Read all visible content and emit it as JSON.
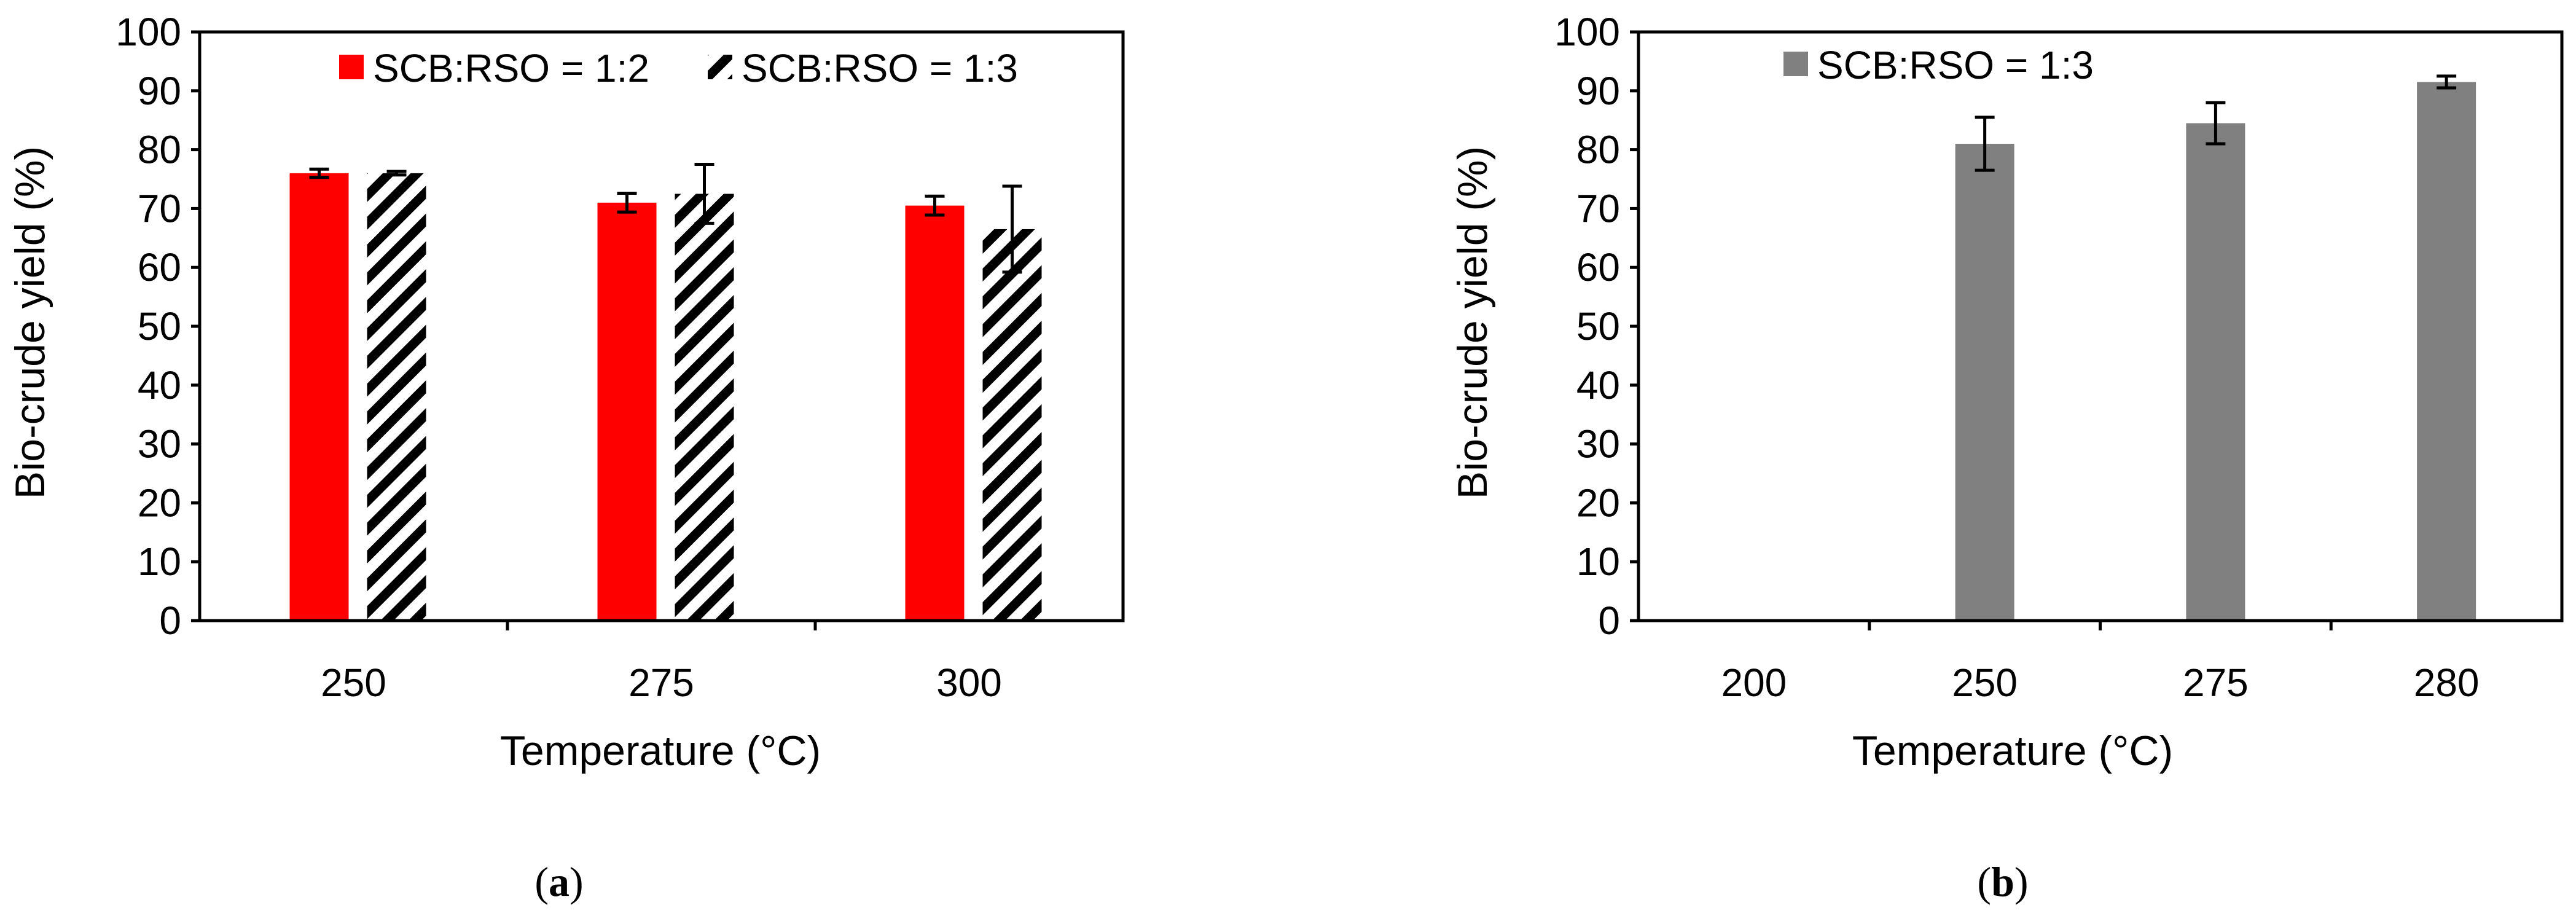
{
  "chart_data": [
    {
      "type": "bar",
      "panel_label": "a",
      "xlabel": "Temperature (°C)",
      "ylabel": "Bio-crude yield (%)",
      "ylim": [
        0,
        100
      ],
      "yticks": [
        0,
        10,
        20,
        30,
        40,
        50,
        60,
        70,
        80,
        90,
        100
      ],
      "categories": [
        "250",
        "275",
        "300"
      ],
      "grid": false,
      "legend_position": "top",
      "series": [
        {
          "name": "SCB:RSO = 1:2",
          "color": "#ff0000",
          "pattern": "solid",
          "values": [
            76,
            71,
            70.5
          ],
          "errors": [
            0.7,
            1.6,
            1.6
          ]
        },
        {
          "name": "SCB:RSO = 1:3",
          "color": "#000000",
          "pattern": "diagonal-hatch",
          "values": [
            76,
            72.5,
            66.5
          ],
          "errors": [
            0.3,
            5,
            7.3
          ]
        }
      ]
    },
    {
      "type": "bar",
      "panel_label": "b",
      "xlabel": "Temperature (°C)",
      "ylabel": "Bio-crude yield (%)",
      "ylim": [
        0,
        100
      ],
      "yticks": [
        0,
        10,
        20,
        30,
        40,
        50,
        60,
        70,
        80,
        90,
        100
      ],
      "categories": [
        "200",
        "250",
        "275",
        "280"
      ],
      "grid": false,
      "legend_position": "top-left",
      "series": [
        {
          "name": "SCB:RSO = 1:3",
          "color": "#808080",
          "pattern": "solid",
          "values": [
            null,
            81,
            84.5,
            91.5
          ],
          "errors": [
            null,
            4.5,
            3.5,
            1
          ]
        }
      ]
    }
  ]
}
